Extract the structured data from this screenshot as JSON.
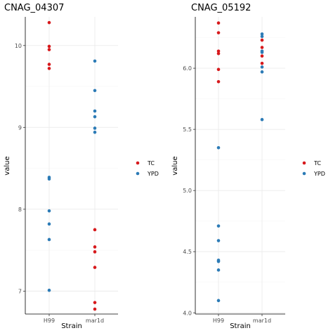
{
  "colors": {
    "TC": "#d7191c",
    "YPD": "#2c7bb6"
  },
  "chart_data": [
    {
      "type": "scatter",
      "title": "CNAG_04307",
      "xlabel": "Strain",
      "ylabel": "value",
      "categories": [
        "H99",
        "mar1d"
      ],
      "ylim": [
        6.72,
        10.35
      ],
      "yticks": [
        7,
        8,
        9,
        10
      ],
      "yticklabels": [
        "7",
        "8",
        "9",
        "10"
      ],
      "grid": true,
      "legend_position": "right",
      "series": [
        {
          "name": "TC",
          "points": [
            {
              "x": "H99",
              "y": 10.28
            },
            {
              "x": "H99",
              "y": 9.99
            },
            {
              "x": "H99",
              "y": 9.95
            },
            {
              "x": "H99",
              "y": 9.77
            },
            {
              "x": "H99",
              "y": 9.72
            },
            {
              "x": "mar1d",
              "y": 7.75
            },
            {
              "x": "mar1d",
              "y": 7.54
            },
            {
              "x": "mar1d",
              "y": 7.48
            },
            {
              "x": "mar1d",
              "y": 7.29
            },
            {
              "x": "mar1d",
              "y": 6.86
            },
            {
              "x": "mar1d",
              "y": 6.78
            }
          ]
        },
        {
          "name": "YPD",
          "points": [
            {
              "x": "H99",
              "y": 8.39
            },
            {
              "x": "H99",
              "y": 8.37
            },
            {
              "x": "H99",
              "y": 7.98
            },
            {
              "x": "H99",
              "y": 7.82
            },
            {
              "x": "H99",
              "y": 7.63
            },
            {
              "x": "H99",
              "y": 7.01
            },
            {
              "x": "mar1d",
              "y": 9.81
            },
            {
              "x": "mar1d",
              "y": 9.45
            },
            {
              "x": "mar1d",
              "y": 9.2
            },
            {
              "x": "mar1d",
              "y": 9.13
            },
            {
              "x": "mar1d",
              "y": 8.99
            },
            {
              "x": "mar1d",
              "y": 8.94
            }
          ]
        }
      ]
    },
    {
      "type": "scatter",
      "title": "CNAG_05192",
      "xlabel": "Strain",
      "ylabel": "value",
      "categories": [
        "H99",
        "mar1d"
      ],
      "ylim": [
        3.99,
        6.42
      ],
      "yticks": [
        4.0,
        4.5,
        5.0,
        5.5,
        6.0
      ],
      "yticklabels": [
        "4.0",
        "4.5",
        "5.0",
        "5.5",
        "6.0"
      ],
      "grid": true,
      "legend_position": "right",
      "series": [
        {
          "name": "TC",
          "points": [
            {
              "x": "H99",
              "y": 6.37
            },
            {
              "x": "H99",
              "y": 6.29
            },
            {
              "x": "H99",
              "y": 6.14
            },
            {
              "x": "H99",
              "y": 6.12
            },
            {
              "x": "H99",
              "y": 5.99
            },
            {
              "x": "H99",
              "y": 5.89
            },
            {
              "x": "mar1d",
              "y": 6.23
            },
            {
              "x": "mar1d",
              "y": 6.17
            },
            {
              "x": "mar1d",
              "y": 6.1
            },
            {
              "x": "mar1d",
              "y": 6.04
            }
          ]
        },
        {
          "name": "YPD",
          "points": [
            {
              "x": "H99",
              "y": 5.35
            },
            {
              "x": "H99",
              "y": 4.71
            },
            {
              "x": "H99",
              "y": 4.59
            },
            {
              "x": "H99",
              "y": 4.43
            },
            {
              "x": "H99",
              "y": 4.42
            },
            {
              "x": "H99",
              "y": 4.35
            },
            {
              "x": "H99",
              "y": 4.1
            },
            {
              "x": "mar1d",
              "y": 6.28
            },
            {
              "x": "mar1d",
              "y": 6.26
            },
            {
              "x": "mar1d",
              "y": 6.14
            },
            {
              "x": "mar1d",
              "y": 6.13
            },
            {
              "x": "mar1d",
              "y": 6.01
            },
            {
              "x": "mar1d",
              "y": 5.97
            },
            {
              "x": "mar1d",
              "y": 5.58
            }
          ]
        }
      ]
    }
  ]
}
